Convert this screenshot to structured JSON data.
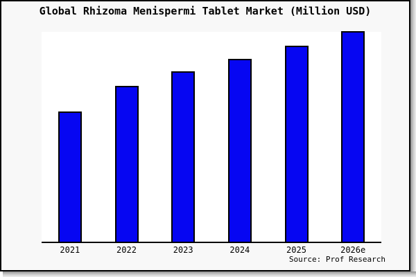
{
  "header": {
    "title": "Global Rhizoma Menispermi Tablet Market (Million USD)"
  },
  "footer": {
    "source_text": "Source: Prof Research"
  },
  "colors": {
    "bar_fill": "#0606f2",
    "bar_border": "#000000",
    "canvas_bg": "#f8f8f8",
    "plot_bg": "#ffffff",
    "axis": "#000000"
  },
  "chart_data": {
    "type": "bar",
    "title": "Global Rhizoma Menispermi Tablet Market (Million USD)",
    "categories": [
      "2021",
      "2022",
      "2023",
      "2024",
      "2025",
      "2026e"
    ],
    "values": [
      62,
      74,
      81,
      87,
      93,
      100
    ],
    "xlabel": "",
    "ylabel": "",
    "ylim": [
      0,
      100
    ],
    "grid": false,
    "legend": false,
    "axis_lines": "bottom-only"
  }
}
